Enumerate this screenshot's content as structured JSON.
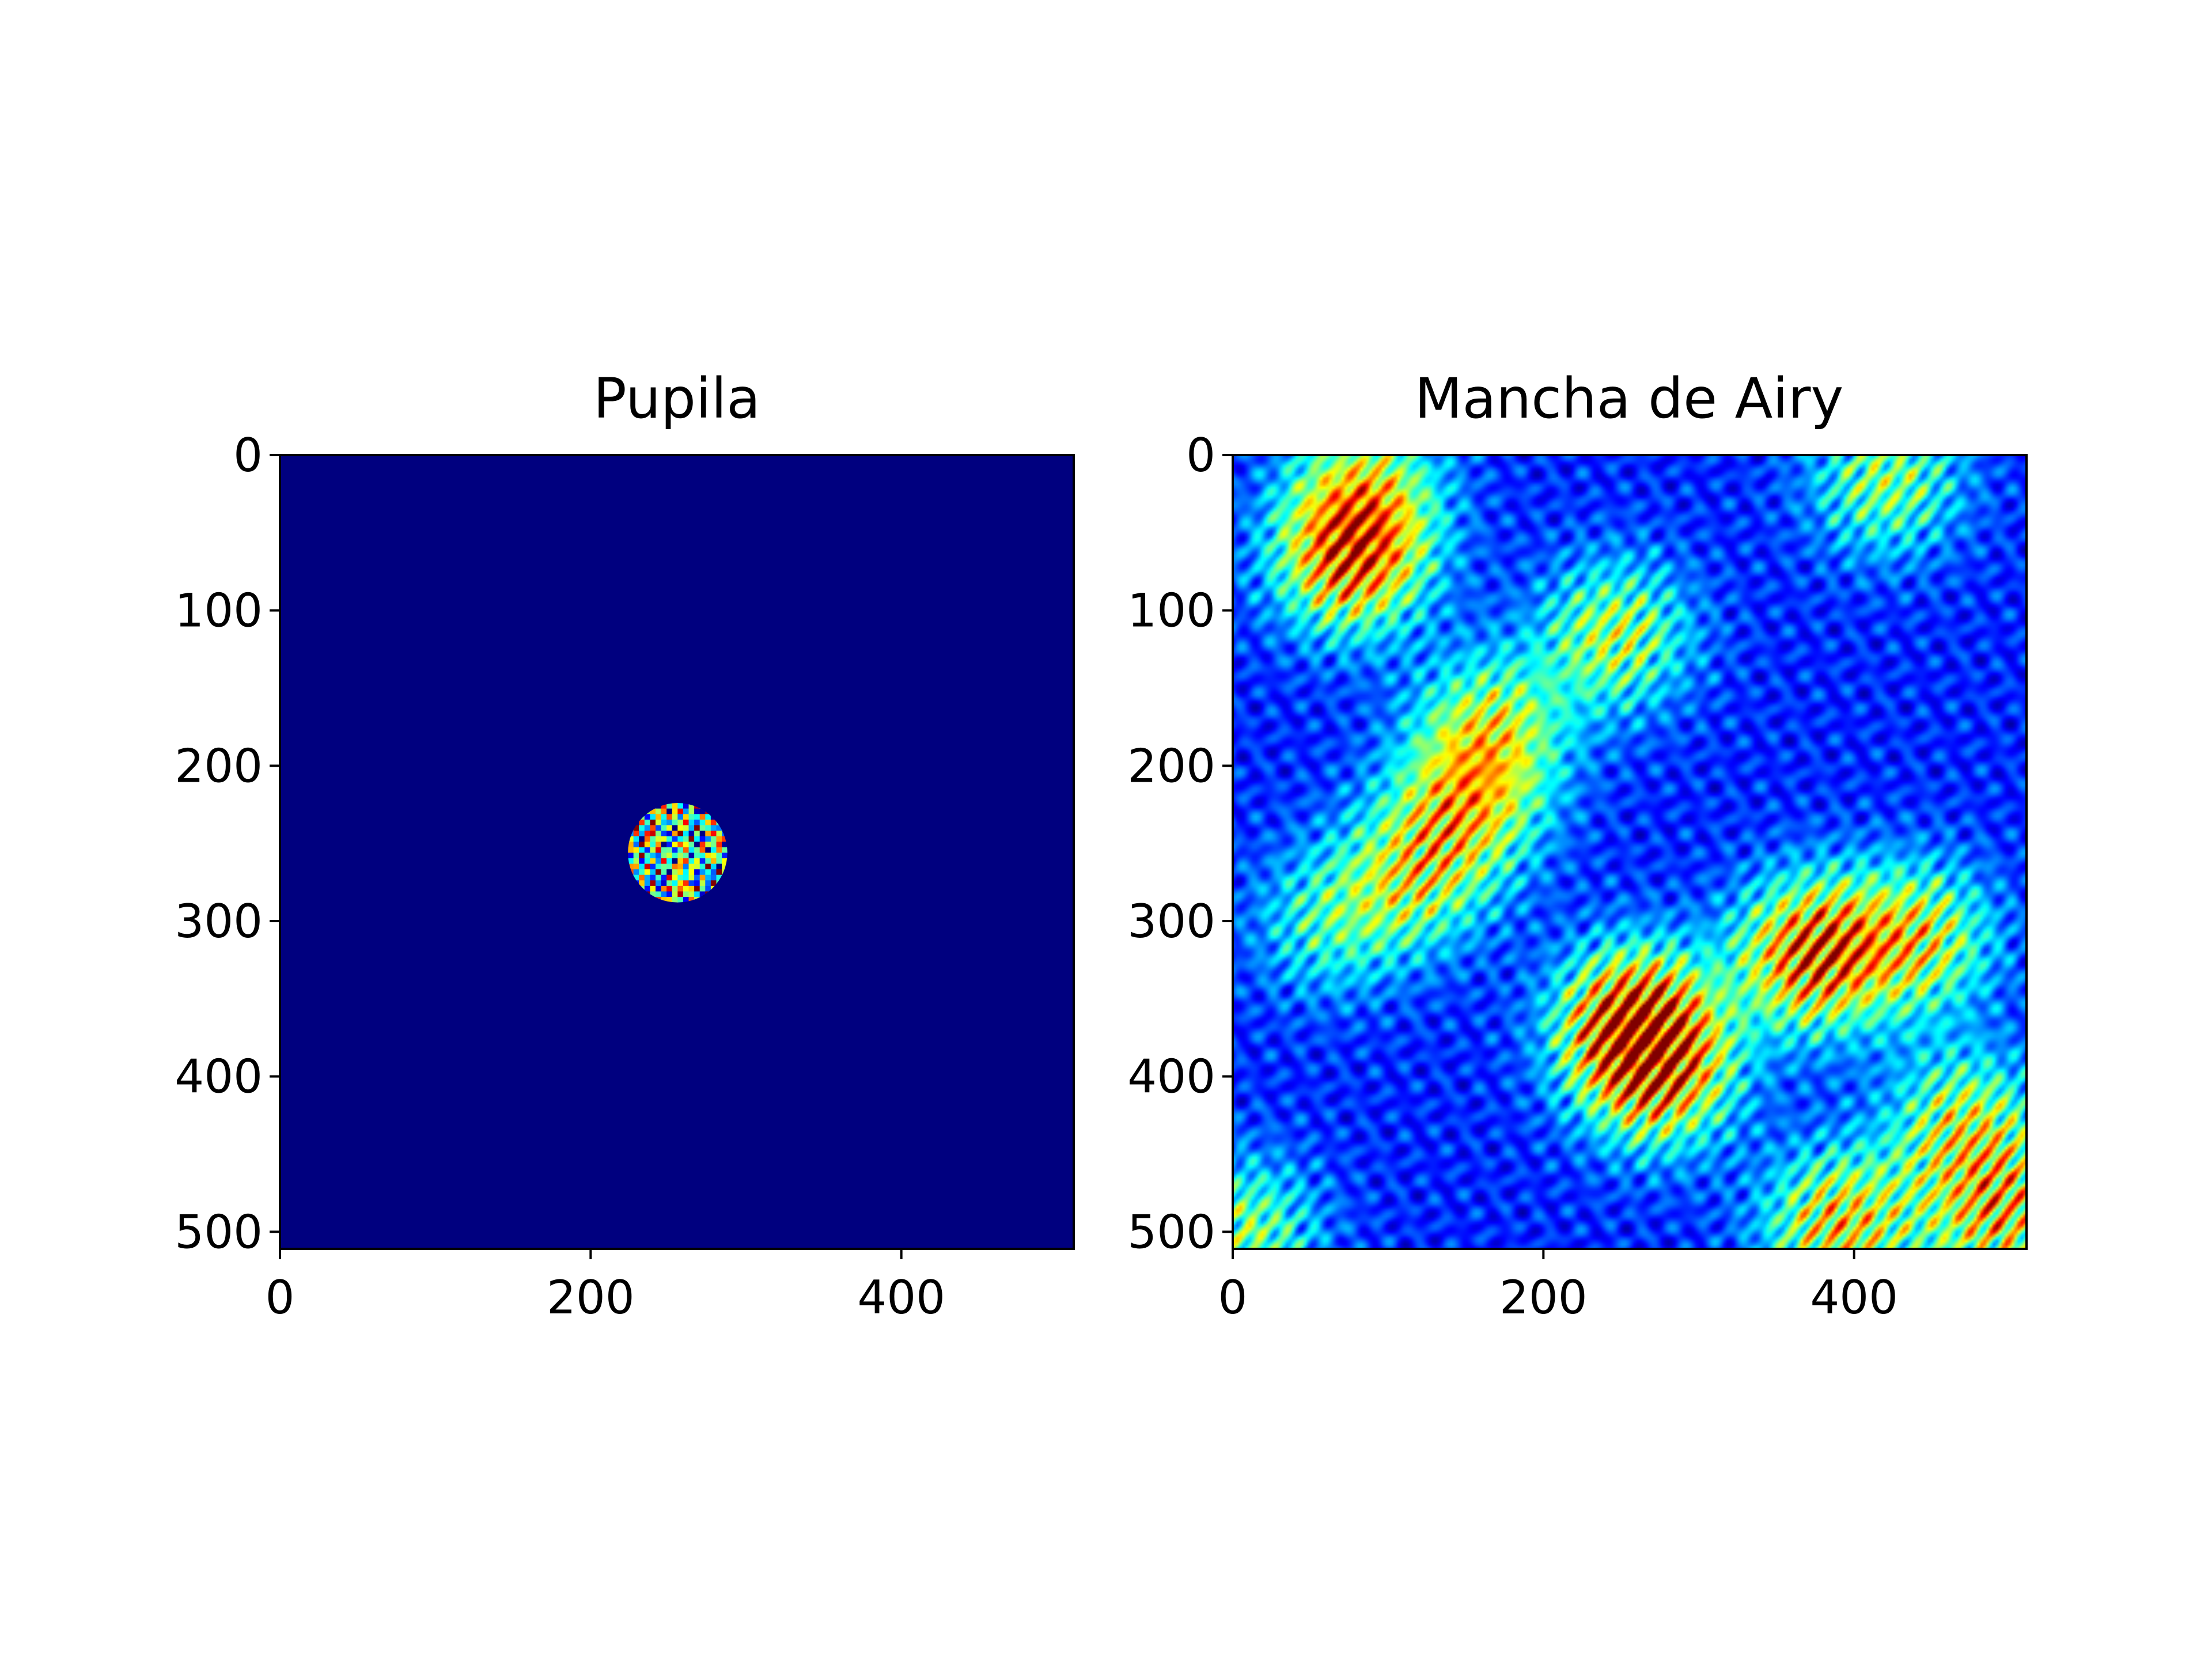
{
  "chart_data": [
    {
      "type": "heatmap",
      "title": "Pupila",
      "xlabel": "",
      "ylabel": "",
      "xlim": [
        0,
        511
      ],
      "ylim": [
        511,
        0
      ],
      "xticks": [
        0,
        200,
        400
      ],
      "xtick_labels": [
        "0",
        "200",
        "400"
      ],
      "yticks": [
        0,
        100,
        200,
        300,
        400,
        500
      ],
      "ytick_labels": [
        "0",
        "100",
        "200",
        "300",
        "400",
        "500"
      ],
      "colormap": "jet",
      "background_color": "#00007f",
      "aperture": {
        "shape": "circle",
        "center": [
          256,
          256
        ],
        "radius": 32,
        "content": "high-frequency multicolor phase pattern"
      },
      "grid": false
    },
    {
      "type": "heatmap",
      "title": "Mancha de Airy",
      "xlabel": "",
      "ylabel": "",
      "xlim": [
        0,
        511
      ],
      "ylim": [
        511,
        0
      ],
      "xticks": [
        0,
        200,
        400
      ],
      "xtick_labels": [
        "0",
        "200",
        "400"
      ],
      "yticks": [
        0,
        100,
        200,
        300,
        400,
        500
      ],
      "ytick_labels": [
        "0",
        "100",
        "200",
        "300",
        "400",
        "500"
      ],
      "colormap": "jet",
      "background_color": "#00009f",
      "speckle_peaks": [
        {
          "x": 75,
          "y": 65,
          "amp": 0.85
        },
        {
          "x": 85,
          "y": 20,
          "amp": 0.5
        },
        {
          "x": 165,
          "y": 175,
          "amp": 0.55
        },
        {
          "x": 150,
          "y": 225,
          "amp": 0.55
        },
        {
          "x": 115,
          "y": 270,
          "amp": 0.5
        },
        {
          "x": 245,
          "y": 115,
          "amp": 0.55
        },
        {
          "x": 420,
          "y": 15,
          "amp": 0.5
        },
        {
          "x": 372,
          "y": 320,
          "amp": 0.9
        },
        {
          "x": 440,
          "y": 310,
          "amp": 0.6
        },
        {
          "x": 258,
          "y": 365,
          "amp": 1.0
        },
        {
          "x": 275,
          "y": 400,
          "amp": 0.6
        },
        {
          "x": 470,
          "y": 430,
          "amp": 0.55
        },
        {
          "x": 390,
          "y": 495,
          "amp": 0.7
        },
        {
          "x": 495,
          "y": 490,
          "amp": 0.65
        },
        {
          "x": 60,
          "y": 300,
          "amp": 0.35
        },
        {
          "x": 5,
          "y": 500,
          "amp": 0.5
        }
      ],
      "grid": false
    }
  ]
}
